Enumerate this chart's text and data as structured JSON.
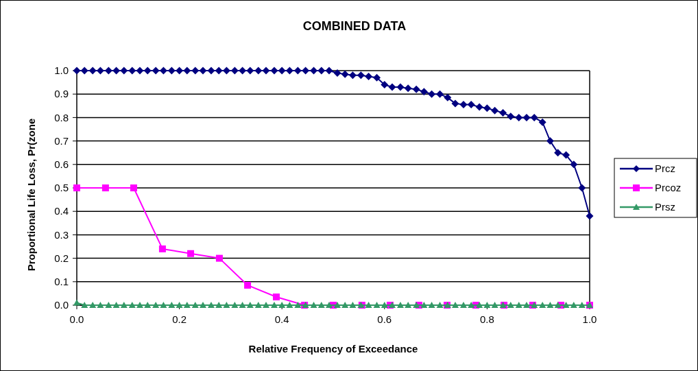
{
  "chart_data": {
    "type": "line",
    "title": "COMBINED DATA",
    "xlabel": "Relative Frequency of Exceedance",
    "ylabel": "Proportional Life Loss, Pr(zone",
    "xlim": [
      0,
      1
    ],
    "xticks": [
      {
        "value": 0,
        "label": "0.0"
      },
      0.2,
      0.4,
      0.6,
      0.8,
      {
        "value": 1,
        "label": "1.0"
      }
    ],
    "ylim": [
      0,
      1
    ],
    "yticks": [
      {
        "value": 0,
        "label": "0.0"
      },
      0.1,
      0.2,
      0.3,
      0.4,
      0.5,
      0.6,
      0.7,
      0.8,
      0.9,
      {
        "value": 1,
        "label": "1.0"
      }
    ],
    "grid": "y",
    "legend": "right",
    "series": [
      {
        "name": "Prcz",
        "color": "#000080",
        "marker": "diamond",
        "x": [
          0,
          0.015,
          0.031,
          0.046,
          0.062,
          0.077,
          0.092,
          0.108,
          0.123,
          0.138,
          0.154,
          0.169,
          0.185,
          0.2,
          0.215,
          0.231,
          0.246,
          0.262,
          0.277,
          0.292,
          0.308,
          0.323,
          0.338,
          0.354,
          0.369,
          0.385,
          0.4,
          0.415,
          0.431,
          0.446,
          0.462,
          0.477,
          0.492,
          0.508,
          0.523,
          0.538,
          0.554,
          0.569,
          0.585,
          0.6,
          0.615,
          0.631,
          0.646,
          0.662,
          0.677,
          0.692,
          0.708,
          0.723,
          0.738,
          0.754,
          0.769,
          0.785,
          0.8,
          0.815,
          0.831,
          0.846,
          0.862,
          0.877,
          0.892,
          0.908,
          0.923,
          0.938,
          0.954,
          0.969,
          0.985,
          1
        ],
        "values": [
          1,
          1,
          1,
          1,
          1,
          1,
          1,
          1,
          1,
          1,
          1,
          1,
          1,
          1,
          1,
          1,
          1,
          1,
          1,
          1,
          1,
          1,
          1,
          1,
          1,
          1,
          1,
          1,
          1,
          1,
          1,
          1,
          1,
          0.99,
          0.985,
          0.98,
          0.98,
          0.975,
          0.97,
          0.94,
          0.93,
          0.93,
          0.925,
          0.92,
          0.91,
          0.9,
          0.9,
          0.885,
          0.86,
          0.855,
          0.855,
          0.845,
          0.84,
          0.83,
          0.82,
          0.805,
          0.8,
          0.8,
          0.8,
          0.78,
          0.7,
          0.65,
          0.64,
          0.6,
          0.5,
          0.38
        ]
      },
      {
        "name": "Prcoz",
        "color": "#ff00ff",
        "marker": "square",
        "x": [
          0,
          0.056,
          0.111,
          0.167,
          0.222,
          0.278,
          0.333,
          0.389,
          0.444,
          0.5,
          0.556,
          0.611,
          0.667,
          0.722,
          0.778,
          0.833,
          0.889,
          0.944,
          1
        ],
        "values": [
          0.5,
          0.5,
          0.5,
          0.24,
          0.22,
          0.2,
          0.085,
          0.035,
          0,
          0,
          0,
          0,
          0,
          0,
          0,
          0,
          0,
          0,
          0
        ]
      },
      {
        "name": "Prsz",
        "color": "#339966",
        "marker": "triangle",
        "x": [
          0,
          0.015,
          0.031,
          0.046,
          0.062,
          0.077,
          0.092,
          0.108,
          0.123,
          0.138,
          0.154,
          0.169,
          0.185,
          0.2,
          0.215,
          0.231,
          0.246,
          0.262,
          0.277,
          0.292,
          0.308,
          0.323,
          0.338,
          0.354,
          0.369,
          0.385,
          0.4,
          0.415,
          0.431,
          0.446,
          0.462,
          0.477,
          0.492,
          0.508,
          0.523,
          0.538,
          0.554,
          0.569,
          0.585,
          0.6,
          0.615,
          0.631,
          0.646,
          0.662,
          0.677,
          0.692,
          0.708,
          0.723,
          0.738,
          0.754,
          0.769,
          0.785,
          0.8,
          0.815,
          0.831,
          0.846,
          0.862,
          0.877,
          0.892,
          0.908,
          0.923,
          0.938,
          0.954,
          0.969,
          0.985,
          1
        ],
        "values": [
          0.01,
          0,
          0,
          0,
          0,
          0,
          0,
          0,
          0,
          0,
          0,
          0,
          0,
          0,
          0,
          0,
          0,
          0,
          0,
          0,
          0,
          0,
          0,
          0,
          0,
          0,
          0,
          0,
          0,
          0,
          0,
          0,
          0,
          0,
          0,
          0,
          0,
          0,
          0,
          0,
          0,
          0,
          0,
          0,
          0,
          0,
          0,
          0,
          0,
          0,
          0,
          0,
          0,
          0,
          0,
          0,
          0,
          0,
          0,
          0,
          0,
          0,
          0,
          0,
          0,
          0
        ]
      }
    ]
  }
}
